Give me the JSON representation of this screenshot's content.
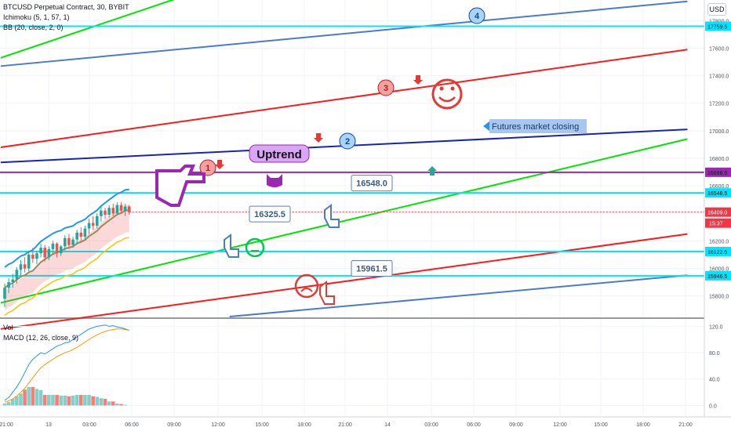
{
  "legend": {
    "symbol": "BTCUSD Perpetual Contract, 30, BYBIT",
    "ichimoku": "Ichimoku (5, 1, 57, 1)",
    "bb": "BB (20, close, 2, 0)",
    "vol": "Vol",
    "macd": "MACD (12, 26, close, 9)"
  },
  "currency_button": "USD",
  "chart_data": [
    {
      "type": "candlestick",
      "title": "BTCUSD Perpetual Contract, 30, BYBIT",
      "ylim": [
        15650,
        17950
      ],
      "y_ticks": [
        15800,
        16000,
        16200,
        16400,
        16600,
        16800,
        17000,
        17200,
        17400,
        17600,
        17800
      ],
      "y_tick_labels": [
        "15800.0",
        "16000.0",
        "16200.0",
        "16400.0",
        "16600.0",
        "16800.0",
        "17000.0",
        "17200.0",
        "17400.0",
        "17600.0",
        "17800.0"
      ],
      "x_tick_labels": [
        "21:00",
        "13",
        "03:00",
        "06:00",
        "09:00",
        "12:00",
        "15:00",
        "18:00",
        "21:00",
        "14",
        "03:00",
        "06:00",
        "09:00",
        "12:00",
        "15:00",
        "18:00",
        "21:00"
      ],
      "candles": [
        {
          "o": 15780,
          "h": 15890,
          "l": 15720,
          "c": 15860
        },
        {
          "o": 15860,
          "h": 15930,
          "l": 15820,
          "c": 15900
        },
        {
          "o": 15900,
          "h": 15960,
          "l": 15860,
          "c": 15920
        },
        {
          "o": 15920,
          "h": 16010,
          "l": 15890,
          "c": 15990
        },
        {
          "o": 15990,
          "h": 16060,
          "l": 15950,
          "c": 16030
        },
        {
          "o": 16030,
          "h": 16080,
          "l": 15970,
          "c": 16000
        },
        {
          "o": 16000,
          "h": 16120,
          "l": 15980,
          "c": 16100
        },
        {
          "o": 16100,
          "h": 16150,
          "l": 16040,
          "c": 16070
        },
        {
          "o": 16070,
          "h": 16130,
          "l": 16030,
          "c": 16110
        },
        {
          "o": 16110,
          "h": 16180,
          "l": 16080,
          "c": 16150
        },
        {
          "o": 16150,
          "h": 16170,
          "l": 16050,
          "c": 16080
        },
        {
          "o": 16080,
          "h": 16160,
          "l": 16060,
          "c": 16140
        },
        {
          "o": 16140,
          "h": 16200,
          "l": 16100,
          "c": 16180
        },
        {
          "o": 16180,
          "h": 16190,
          "l": 16080,
          "c": 16110
        },
        {
          "o": 16110,
          "h": 16170,
          "l": 16090,
          "c": 16160
        },
        {
          "o": 16160,
          "h": 16240,
          "l": 16130,
          "c": 16220
        },
        {
          "o": 16220,
          "h": 16250,
          "l": 16140,
          "c": 16170
        },
        {
          "o": 16170,
          "h": 16230,
          "l": 16150,
          "c": 16210
        },
        {
          "o": 16210,
          "h": 16280,
          "l": 16180,
          "c": 16260
        },
        {
          "o": 16260,
          "h": 16300,
          "l": 16200,
          "c": 16230
        },
        {
          "o": 16230,
          "h": 16310,
          "l": 16210,
          "c": 16290
        },
        {
          "o": 16290,
          "h": 16360,
          "l": 16250,
          "c": 16330
        },
        {
          "o": 16330,
          "h": 16380,
          "l": 16280,
          "c": 16310
        },
        {
          "o": 16310,
          "h": 16400,
          "l": 16290,
          "c": 16380
        },
        {
          "o": 16380,
          "h": 16450,
          "l": 16340,
          "c": 16420
        },
        {
          "o": 16420,
          "h": 16440,
          "l": 16360,
          "c": 16390
        },
        {
          "o": 16390,
          "h": 16460,
          "l": 16370,
          "c": 16440
        },
        {
          "o": 16440,
          "h": 16470,
          "l": 16380,
          "c": 16400
        },
        {
          "o": 16400,
          "h": 16480,
          "l": 16390,
          "c": 16460
        },
        {
          "o": 16460,
          "h": 16480,
          "l": 16400,
          "c": 16420
        },
        {
          "o": 16420,
          "h": 16470,
          "l": 16380,
          "c": 16450
        },
        {
          "o": 16450,
          "h": 16460,
          "l": 16390,
          "c": 16409
        }
      ],
      "horizontal_levels": [
        {
          "value": 17759.5,
          "label": "17759.5",
          "color": "#00e5ff"
        },
        {
          "value": 16698.5,
          "label": "16698.5",
          "color": "#9c27b0"
        },
        {
          "value": 16548.5,
          "label": "16548.5",
          "color": "#00e5ff"
        },
        {
          "value": 16409.0,
          "label": "16409.0",
          "color": "#f23645",
          "label_fg": "#ffffff"
        },
        {
          "value": 16122.5,
          "label": "16122.5",
          "color": "#00e5ff"
        },
        {
          "value": 15946.5,
          "label": "15946.5",
          "color": "#00e5ff"
        }
      ],
      "current_time_label": "15:37",
      "trendlines": [
        {
          "color": "#00e600",
          "from": [
            -1,
            17530
          ],
          "to": [
            57,
            18100
          ]
        },
        {
          "color": "#4a7bd0",
          "from": [
            -1,
            17470
          ],
          "to": [
            170,
            17940
          ]
        },
        {
          "color": "#ff1a1a",
          "from": [
            -1,
            16880
          ],
          "to": [
            170,
            17590
          ]
        },
        {
          "color": "#1a23b5",
          "from": [
            -1,
            16770
          ],
          "to": [
            170,
            17010
          ]
        },
        {
          "color": "#00e600",
          "from": [
            -1,
            15750
          ],
          "to": [
            170,
            16940
          ]
        },
        {
          "color": "#ff1a1a",
          "from": [
            -1,
            15560
          ],
          "to": [
            170,
            16250
          ]
        },
        {
          "color": "#4a7bd0",
          "from": [
            56,
            15650
          ],
          "to": [
            170,
            15950
          ]
        }
      ],
      "price_callouts": [
        "16548.0",
        "16325.5",
        "15961.5"
      ],
      "annotations": {
        "uptrend": "Uptrend",
        "futures_closing": "Futures market closing",
        "wave_labels": [
          "1",
          "2",
          "3",
          "4"
        ]
      }
    },
    {
      "type": "bar",
      "panel": "volume",
      "colors": {
        "up": "#26a69a",
        "down": "#ef5350"
      }
    },
    {
      "type": "line",
      "panel": "MACD (12, 26, close, 9)",
      "ylim": [
        -15,
        130
      ],
      "y_ticks": [
        0,
        40,
        80,
        120
      ],
      "y_tick_labels": [
        "0.0",
        "40.0",
        "80.0",
        "120.0"
      ],
      "series": [
        {
          "color": "#2196f3",
          "values": [
            8,
            12,
            20,
            28,
            38,
            50,
            62,
            70,
            75,
            80,
            78,
            82,
            86,
            90,
            92,
            95,
            96,
            100,
            104,
            108,
            112,
            116,
            118,
            120,
            121,
            122,
            120,
            121,
            119,
            118,
            116,
            114
          ]
        },
        {
          "color": "#ff9800",
          "values": [
            5,
            7,
            10,
            14,
            20,
            26,
            34,
            42,
            50,
            57,
            62,
            66,
            70,
            74,
            77,
            80,
            82,
            85,
            88,
            92,
            96,
            100,
            104,
            107,
            110,
            112,
            114,
            115,
            116,
            116,
            115,
            114
          ]
        }
      ],
      "histogram": [
        3,
        5,
        10,
        14,
        18,
        24,
        28,
        28,
        25,
        23,
        16,
        16,
        16,
        16,
        15,
        15,
        14,
        15,
        16,
        16,
        16,
        16,
        14,
        13,
        11,
        10,
        6,
        6,
        3,
        2,
        1,
        0
      ]
    }
  ]
}
